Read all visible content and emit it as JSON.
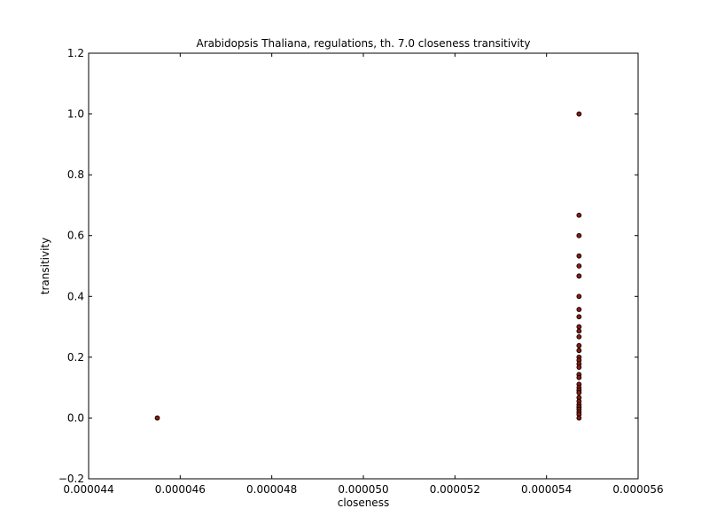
{
  "chart_data": {
    "type": "scatter",
    "title": "Arabidopsis Thaliana, regulations, th. 7.0 closeness transitivity",
    "xlabel": "closeness",
    "ylabel": "transitivity",
    "xlim": [
      4.4e-05,
      5.6e-05
    ],
    "ylim": [
      -0.2,
      1.2
    ],
    "x_ticks": [
      "0.000044",
      "0.000046",
      "0.000048",
      "0.000050",
      "0.000052",
      "0.000054",
      "0.000056"
    ],
    "y_ticks": [
      "−0.2",
      "0.0",
      "0.2",
      "0.4",
      "0.6",
      "0.8",
      "1.0",
      "1.2"
    ],
    "grid": false,
    "marker_color": "#8b1a0e",
    "marker_edge_color": "#000000",
    "points": [
      {
        "x": 4.55e-05,
        "y": 0.0
      },
      {
        "x": 5.471e-05,
        "y": 1.0
      },
      {
        "x": 5.471e-05,
        "y": 0.667
      },
      {
        "x": 5.471e-05,
        "y": 0.6
      },
      {
        "x": 5.471e-05,
        "y": 0.533
      },
      {
        "x": 5.471e-05,
        "y": 0.5
      },
      {
        "x": 5.471e-05,
        "y": 0.467
      },
      {
        "x": 5.471e-05,
        "y": 0.4
      },
      {
        "x": 5.471e-05,
        "y": 0.357
      },
      {
        "x": 5.471e-05,
        "y": 0.333
      },
      {
        "x": 5.471e-05,
        "y": 0.3
      },
      {
        "x": 5.471e-05,
        "y": 0.286
      },
      {
        "x": 5.471e-05,
        "y": 0.267
      },
      {
        "x": 5.471e-05,
        "y": 0.238
      },
      {
        "x": 5.471e-05,
        "y": 0.222
      },
      {
        "x": 5.471e-05,
        "y": 0.2
      },
      {
        "x": 5.471e-05,
        "y": 0.19
      },
      {
        "x": 5.471e-05,
        "y": 0.178
      },
      {
        "x": 5.471e-05,
        "y": 0.167
      },
      {
        "x": 5.471e-05,
        "y": 0.143
      },
      {
        "x": 5.471e-05,
        "y": 0.133
      },
      {
        "x": 5.471e-05,
        "y": 0.111
      },
      {
        "x": 5.471e-05,
        "y": 0.1
      },
      {
        "x": 5.471e-05,
        "y": 0.091
      },
      {
        "x": 5.471e-05,
        "y": 0.083
      },
      {
        "x": 5.471e-05,
        "y": 0.067
      },
      {
        "x": 5.471e-05,
        "y": 0.055
      },
      {
        "x": 5.471e-05,
        "y": 0.044
      },
      {
        "x": 5.471e-05,
        "y": 0.036
      },
      {
        "x": 5.471e-05,
        "y": 0.029
      },
      {
        "x": 5.471e-05,
        "y": 0.02
      },
      {
        "x": 5.471e-05,
        "y": 0.012
      },
      {
        "x": 5.471e-05,
        "y": 0.0
      }
    ]
  }
}
